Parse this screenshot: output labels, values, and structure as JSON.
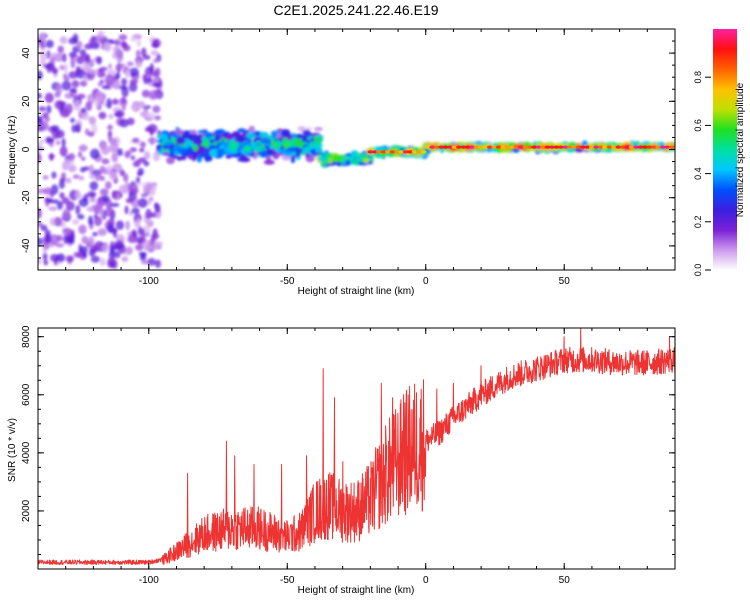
{
  "title": "C2E1.2025.241.22.46.E19",
  "chart_data": [
    {
      "type": "heatmap",
      "name": "spectrogram",
      "xlabel": "Height of straight line (km)",
      "ylabel": "Frequency (Hz)",
      "xlim": [
        -140,
        90
      ],
      "ylim": [
        -50,
        50
      ],
      "xticks": [
        -100,
        -50,
        0,
        50
      ],
      "yticks": [
        -40,
        -20,
        0,
        20,
        40
      ],
      "colorbar": {
        "label": "Normalized spectral amplitude",
        "range": [
          0.0,
          1.0
        ],
        "ticks": [
          "0.0",
          "0.2",
          "0.4",
          "0.6",
          "0.8"
        ],
        "colors": [
          "#ffffff",
          "#cc99ee",
          "#7a1fd6",
          "#3a1fe0",
          "#0050ff",
          "#00c8ff",
          "#00e0a0",
          "#20e020",
          "#c0e000",
          "#ffc000",
          "#ff6000",
          "#ff1010",
          "#ff20a0"
        ]
      },
      "regions": [
        {
          "x_range": [
            -140,
            -96
          ],
          "f_center": 0,
          "f_spread": 48,
          "amplitude": 0.1,
          "description_level": "noise"
        },
        {
          "x_range": [
            -96,
            -38
          ],
          "f_center": 2,
          "f_spread": 8,
          "amplitude": 0.45
        },
        {
          "x_range": [
            -38,
            -20
          ],
          "f_center": -4,
          "f_spread": 3,
          "amplitude": 0.6
        },
        {
          "x_range": [
            -20,
            0
          ],
          "f_center": -1,
          "f_spread": 2,
          "amplitude": 0.7
        },
        {
          "x_range": [
            0,
            90
          ],
          "f_center": 1,
          "f_spread": 1.5,
          "amplitude": 0.8
        }
      ]
    },
    {
      "type": "line",
      "name": "snr",
      "xlabel": "Height of straight line (km)",
      "ylabel": "SNR (10 * v/v)",
      "xlim": [
        -140,
        90
      ],
      "ylim": [
        0,
        8300
      ],
      "xticks": [
        -100,
        -50,
        0,
        50
      ],
      "yticks": [
        2000,
        4000,
        6000,
        8000
      ],
      "color": "#ee3333",
      "envelope": {
        "x": [
          -140,
          -100,
          -95,
          -90,
          -80,
          -70,
          -60,
          -50,
          -45,
          -40,
          -35,
          -30,
          -25,
          -20,
          -15,
          -10,
          -5,
          0,
          5,
          10,
          20,
          30,
          40,
          50,
          60,
          70,
          80,
          90
        ],
        "y": [
          200,
          200,
          300,
          600,
          1200,
          1400,
          1400,
          1100,
          1300,
          2000,
          2200,
          2000,
          2000,
          2400,
          3200,
          3700,
          4200,
          4400,
          4700,
          5200,
          6000,
          6600,
          6900,
          7200,
          7200,
          7100,
          7100,
          7200
        ]
      },
      "spikes": [
        {
          "x": -86,
          "y": 3300
        },
        {
          "x": -72,
          "y": 4400
        },
        {
          "x": -69,
          "y": 3900
        },
        {
          "x": -62,
          "y": 3600
        },
        {
          "x": -52,
          "y": 3600
        },
        {
          "x": -43,
          "y": 3900
        },
        {
          "x": -37,
          "y": 6900
        },
        {
          "x": -33,
          "y": 5900
        },
        {
          "x": -30,
          "y": 3700
        },
        {
          "x": -16,
          "y": 6400
        },
        {
          "x": -12,
          "y": 5900
        },
        {
          "x": -8,
          "y": 6000
        },
        {
          "x": 4,
          "y": 6200
        },
        {
          "x": 10,
          "y": 6400
        },
        {
          "x": 20,
          "y": 7000
        },
        {
          "x": 50,
          "y": 8000
        },
        {
          "x": 56,
          "y": 8300
        },
        {
          "x": 88,
          "y": 8000
        }
      ]
    }
  ]
}
